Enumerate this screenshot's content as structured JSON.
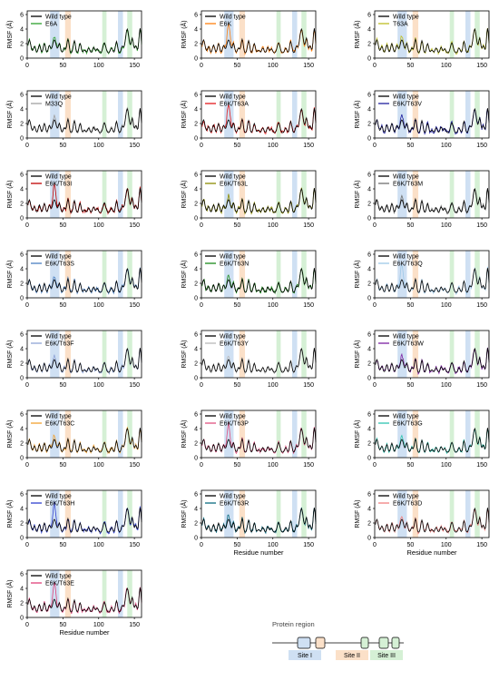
{
  "figure": {
    "xlabel": "Residue number",
    "ylabel": "RMSF (Å)",
    "x_ticks": [
      0,
      50,
      100,
      150
    ],
    "y_ticks": [
      0,
      2,
      4,
      6
    ],
    "xlim": [
      0,
      160
    ],
    "ylim": [
      0,
      6.5
    ],
    "reference_label": "Wild type",
    "reference_color": "#000000"
  },
  "regions": [
    {
      "name": "Site I",
      "color": "#cfe0f3",
      "bands": [
        [
          32,
          45
        ],
        [
          127,
          134
        ]
      ]
    },
    {
      "name": "Site II",
      "color": "#fbe0c8",
      "bands": [
        [
          53,
          61
        ]
      ]
    },
    {
      "name": "Site III",
      "color": "#d5f0d5",
      "bands": [
        [
          105,
          111
        ],
        [
          140,
          147
        ]
      ]
    }
  ],
  "legend": {
    "title": "Protein region",
    "items": [
      "Site I",
      "Site II",
      "Site III"
    ]
  },
  "chart_data": [
    {
      "type": "line",
      "label": "E6A",
      "color": "#2ca02c",
      "series": [
        {
          "name": "Wild type"
        },
        {
          "name": "E6A"
        }
      ]
    },
    {
      "type": "line",
      "label": "E6K",
      "color": "#ff7f0e",
      "series": [
        {
          "name": "Wild type"
        },
        {
          "name": "E6K"
        }
      ]
    },
    {
      "type": "line",
      "label": "T63A",
      "color": "#bcbd22",
      "series": [
        {
          "name": "Wild type"
        },
        {
          "name": "T63A"
        }
      ]
    },
    {
      "type": "line",
      "label": "M33Q",
      "color": "#a0a0a0",
      "series": [
        {
          "name": "Wild type"
        },
        {
          "name": "M33Q"
        }
      ]
    },
    {
      "type": "line",
      "label": "E6K/T63A",
      "color": "#e31a1c",
      "series": [
        {
          "name": "Wild type"
        },
        {
          "name": "E6K/T63A"
        }
      ]
    },
    {
      "type": "line",
      "label": "E6K/T63V",
      "color": "#1f1f9f",
      "series": [
        {
          "name": "Wild type"
        },
        {
          "name": "E6K/T63V"
        }
      ]
    },
    {
      "type": "line",
      "label": "E6K/T63I",
      "color": "#c00000",
      "series": [
        {
          "name": "Wild type"
        },
        {
          "name": "E6K/T63I"
        }
      ]
    },
    {
      "type": "line",
      "label": "E6K/T63L",
      "color": "#8c8c00",
      "series": [
        {
          "name": "Wild type"
        },
        {
          "name": "E6K/T63L"
        }
      ]
    },
    {
      "type": "line",
      "label": "E6K/T63M",
      "color": "#707070",
      "series": [
        {
          "name": "Wild type"
        },
        {
          "name": "E6K/T63M"
        }
      ]
    },
    {
      "type": "line",
      "label": "E6K/T63S",
      "color": "#4a7fc1",
      "series": [
        {
          "name": "Wild type"
        },
        {
          "name": "E6K/T63S"
        }
      ]
    },
    {
      "type": "line",
      "label": "E6K/T63N",
      "color": "#1a8a1a",
      "series": [
        {
          "name": "Wild type"
        },
        {
          "name": "E6K/T63N"
        }
      ]
    },
    {
      "type": "line",
      "label": "E6K/T63Q",
      "color": "#9ec8e8",
      "series": [
        {
          "name": "Wild type"
        },
        {
          "name": "E6K/T63Q"
        }
      ]
    },
    {
      "type": "line",
      "label": "E6K/T63F",
      "color": "#8fa3d6",
      "series": [
        {
          "name": "Wild type"
        },
        {
          "name": "E6K/T63F"
        }
      ]
    },
    {
      "type": "line",
      "label": "E6K/T63Y",
      "color": "#b8b8b8",
      "series": [
        {
          "name": "Wild type"
        },
        {
          "name": "E6K/T63Y"
        }
      ]
    },
    {
      "type": "line",
      "label": "E6K/T63W",
      "color": "#7b1fa2",
      "series": [
        {
          "name": "Wild type"
        },
        {
          "name": "E6K/T63W"
        }
      ]
    },
    {
      "type": "line",
      "label": "E6K/T63C",
      "color": "#f0a030",
      "series": [
        {
          "name": "Wild type"
        },
        {
          "name": "E6K/T63C"
        }
      ]
    },
    {
      "type": "line",
      "label": "E6K/T63P",
      "color": "#e05080",
      "series": [
        {
          "name": "Wild type"
        },
        {
          "name": "E6K/T63P"
        }
      ]
    },
    {
      "type": "line",
      "label": "E6K/T63G",
      "color": "#2ec4b0",
      "series": [
        {
          "name": "Wild type"
        },
        {
          "name": "E6K/T63G"
        }
      ]
    },
    {
      "type": "line",
      "label": "E6K/T63H",
      "color": "#3040d0",
      "series": [
        {
          "name": "Wild type"
        },
        {
          "name": "E6K/T63H"
        }
      ]
    },
    {
      "type": "line",
      "label": "E6K/T63R",
      "color": "#0a6b80",
      "series": [
        {
          "name": "Wild type"
        },
        {
          "name": "E6K/T63R"
        }
      ]
    },
    {
      "type": "line",
      "label": "E6K/T63D",
      "color": "#f08080",
      "series": [
        {
          "name": "Wild type"
        },
        {
          "name": "E6K/T63D"
        }
      ]
    },
    {
      "type": "line",
      "label": "E6K/T63E",
      "color": "#e0407a",
      "series": [
        {
          "name": "Wild type"
        },
        {
          "name": "E6K/T63E"
        }
      ]
    }
  ]
}
